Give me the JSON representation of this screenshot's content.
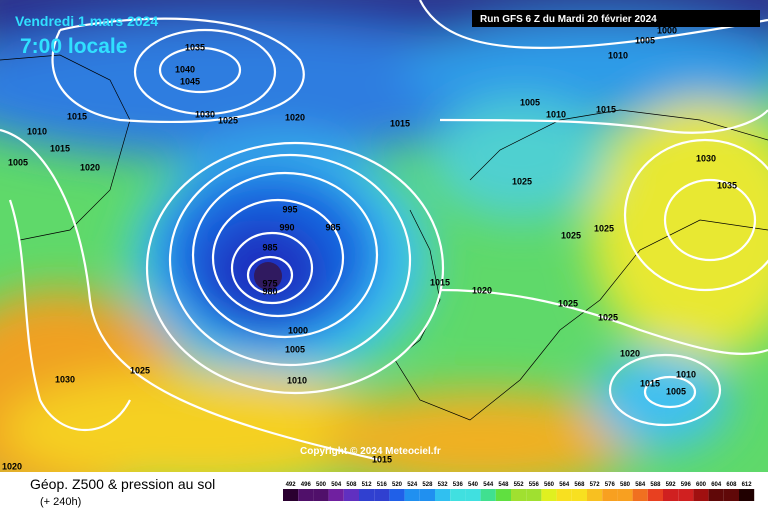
{
  "header": {
    "date": "Vendredi 1 mars 2024",
    "time": "7:00 locale",
    "run": "Run GFS 6 Z du Mardi 20 février 2024"
  },
  "isobar_labels": [
    "1035",
    "1040",
    "1045",
    "1030",
    "1025",
    "1020",
    "1015",
    "1015",
    "1010",
    "1015",
    "1005",
    "1020",
    "995",
    "990",
    "985",
    "985",
    "975",
    "980",
    "1000",
    "1005",
    "1010",
    "1015",
    "1020",
    "1025",
    "1030",
    "1020",
    "1015",
    "1005",
    "1010",
    "1000",
    "1005",
    "1010",
    "1015",
    "1030",
    "1035",
    "1025",
    "1025",
    "1025",
    "1025",
    "1025",
    "1020",
    "1015",
    "1010",
    "1005"
  ],
  "copyright": "Copyright © 2024 Meteociel.fr",
  "footer": {
    "title": "Géop. Z500 & pression au sol",
    "subtitle": "(+ 240h)"
  },
  "colorbar_labels": [
    "492",
    "496",
    "500",
    "504",
    "508",
    "512",
    "516",
    "520",
    "524",
    "528",
    "532",
    "536",
    "540",
    "544",
    "548",
    "552",
    "556",
    "560",
    "564",
    "568",
    "572",
    "576",
    "580",
    "584",
    "588",
    "592",
    "596",
    "600",
    "604",
    "608",
    "612"
  ]
}
